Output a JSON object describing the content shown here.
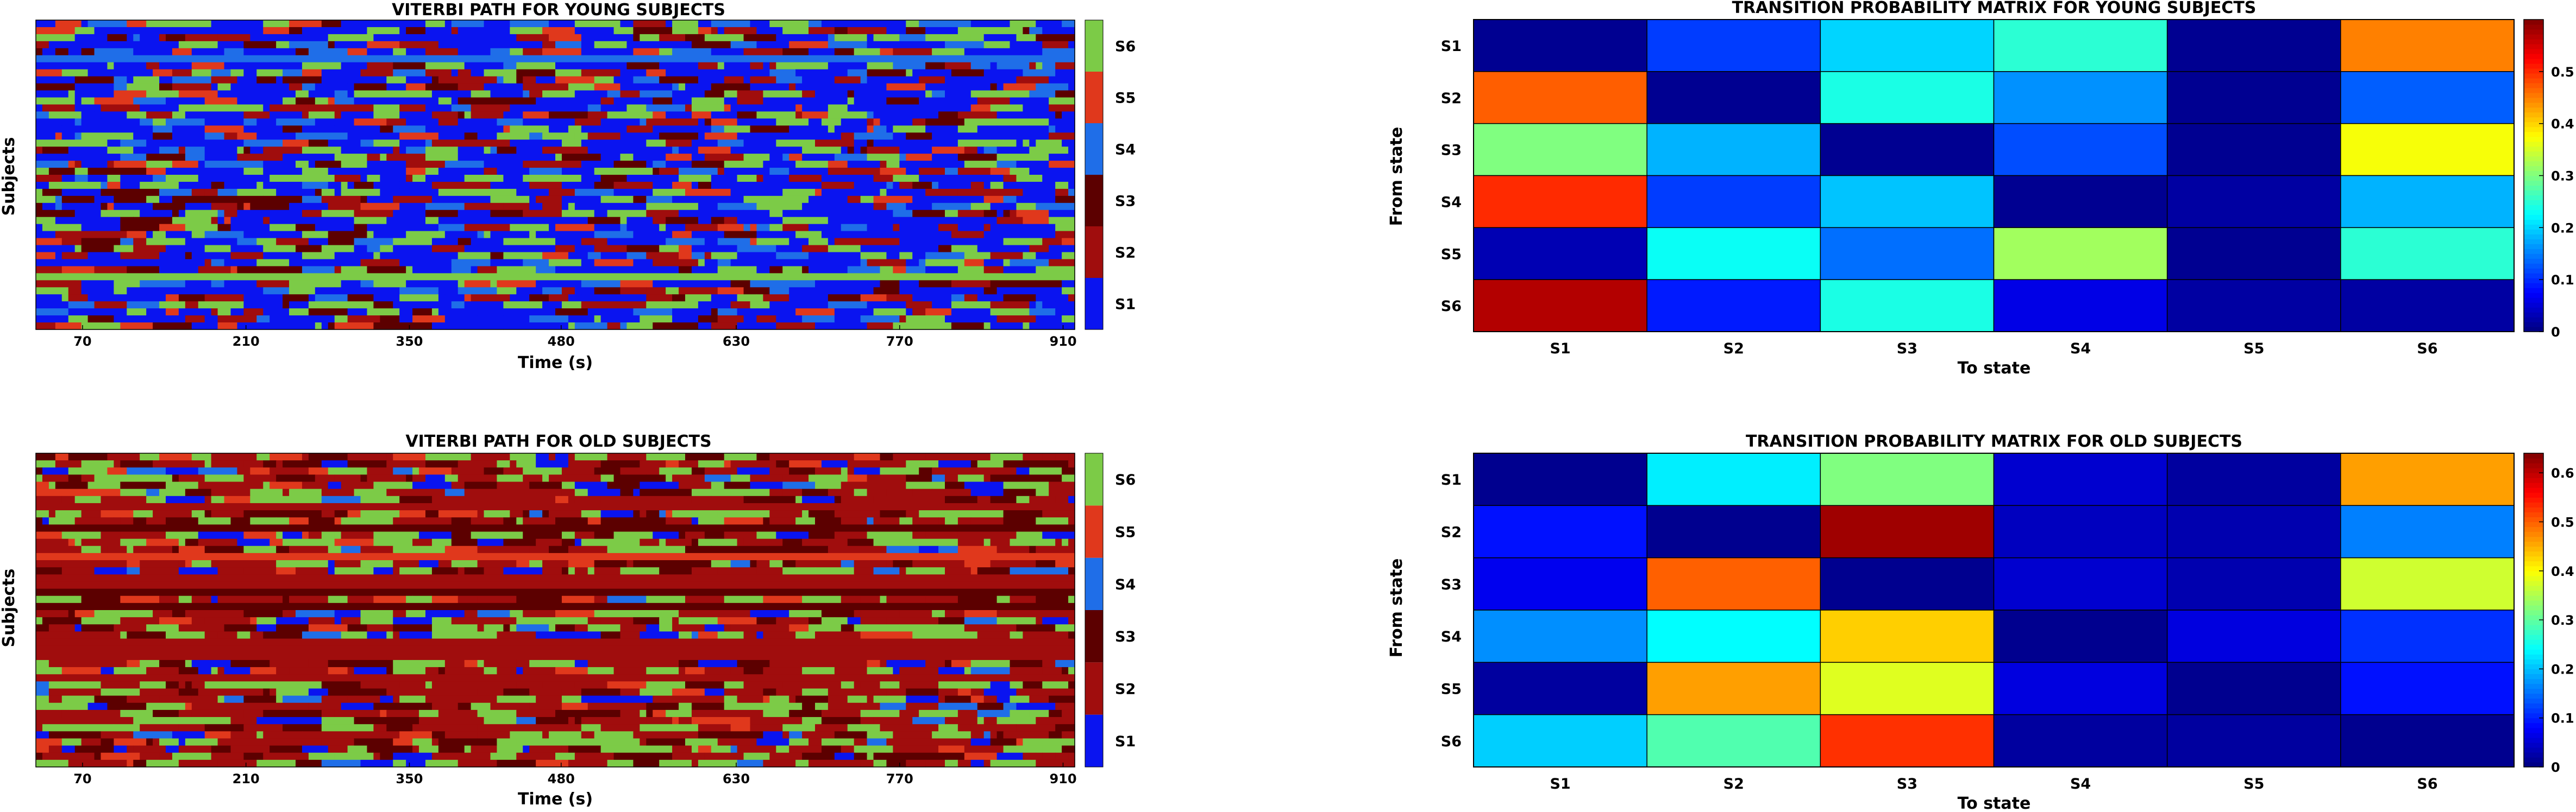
{
  "chart_data": [
    {
      "id": "viterbi_young",
      "type": "heatmap",
      "title": "VITERBI PATH FOR YOUNG SUBJECTS",
      "xlabel": "Time (s)",
      "ylabel": "Subjects",
      "xticks": [
        "70",
        "210",
        "350",
        "480",
        "630",
        "770",
        "910"
      ],
      "xtick_values": [
        70,
        210,
        350,
        480,
        630,
        770,
        910
      ],
      "xlim": [
        30,
        920
      ],
      "rows": 44,
      "cols": 160,
      "state_labels": [
        "S1",
        "S2",
        "S3",
        "S4",
        "S5",
        "S6"
      ],
      "state_colors": [
        "#0a14f0",
        "#a00d0d",
        "#5c0000",
        "#1f6ee8",
        "#e0381c",
        "#7ccb47"
      ],
      "state_weights": [
        0.46,
        0.13,
        0.09,
        0.09,
        0.06,
        0.17
      ]
    },
    {
      "id": "transition_young",
      "type": "heatmap",
      "title": "TRANSITION PROBABILITY MATRIX FOR YOUNG SUBJECTS",
      "xlabel": "To state",
      "ylabel": "From state",
      "row_labels": [
        "S1",
        "S2",
        "S3",
        "S4",
        "S5",
        "S6"
      ],
      "col_labels": [
        "S1",
        "S2",
        "S3",
        "S4",
        "S5",
        "S6"
      ],
      "values": [
        [
          0.01,
          0.11,
          0.2,
          0.25,
          0.01,
          0.45
        ],
        [
          0.47,
          0.01,
          0.24,
          0.16,
          0.01,
          0.13
        ],
        [
          0.3,
          0.18,
          0.01,
          0.12,
          0.01,
          0.37
        ],
        [
          0.5,
          0.11,
          0.19,
          0.01,
          0.02,
          0.18
        ],
        [
          0.03,
          0.23,
          0.14,
          0.32,
          0.01,
          0.25
        ],
        [
          0.57,
          0.09,
          0.24,
          0.06,
          0.02,
          0.02
        ]
      ],
      "colorbar": {
        "min": 0,
        "max": 0.6,
        "ticks": [
          "0",
          "0.1",
          "0.2",
          "0.3",
          "0.4",
          "0.5"
        ],
        "tick_values": [
          0,
          0.1,
          0.2,
          0.3,
          0.4,
          0.5
        ]
      }
    },
    {
      "id": "viterbi_old",
      "type": "heatmap",
      "title": "VITERBI PATH FOR OLD SUBJECTS",
      "xlabel": "Time (s)",
      "ylabel": "Subjects",
      "xticks": [
        "70",
        "210",
        "350",
        "480",
        "630",
        "770",
        "910"
      ],
      "xtick_values": [
        70,
        210,
        350,
        480,
        630,
        770,
        910
      ],
      "xlim": [
        30,
        920
      ],
      "rows": 44,
      "cols": 160,
      "state_labels": [
        "S1",
        "S2",
        "S3",
        "S4",
        "S5",
        "S6"
      ],
      "state_colors": [
        "#0a14f0",
        "#a00d0d",
        "#5c0000",
        "#1f6ee8",
        "#e0381c",
        "#7ccb47"
      ],
      "state_weights": [
        0.07,
        0.42,
        0.16,
        0.03,
        0.08,
        0.24
      ]
    },
    {
      "id": "transition_old",
      "type": "heatmap",
      "title": "TRANSITION PROBABILITY MATRIX FOR OLD SUBJECTS",
      "xlabel": "To state",
      "ylabel": "From state",
      "row_labels": [
        "S1",
        "S2",
        "S3",
        "S4",
        "S5",
        "S6"
      ],
      "col_labels": [
        "S1",
        "S2",
        "S3",
        "S4",
        "S5",
        "S6"
      ],
      "values": [
        [
          0.01,
          0.23,
          0.32,
          0.05,
          0.02,
          0.46
        ],
        [
          0.09,
          0.01,
          0.62,
          0.04,
          0.03,
          0.16
        ],
        [
          0.07,
          0.5,
          0.01,
          0.05,
          0.03,
          0.37
        ],
        [
          0.17,
          0.24,
          0.43,
          0.01,
          0.06,
          0.11
        ],
        [
          0.02,
          0.46,
          0.38,
          0.06,
          0.01,
          0.09
        ],
        [
          0.21,
          0.29,
          0.53,
          0.02,
          0.02,
          0.01
        ]
      ],
      "colorbar": {
        "min": 0,
        "max": 0.64,
        "ticks": [
          "0",
          "0.1",
          "0.2",
          "0.3",
          "0.4",
          "0.5",
          "0.6"
        ],
        "tick_values": [
          0,
          0.1,
          0.2,
          0.3,
          0.4,
          0.5,
          0.6
        ]
      }
    }
  ]
}
